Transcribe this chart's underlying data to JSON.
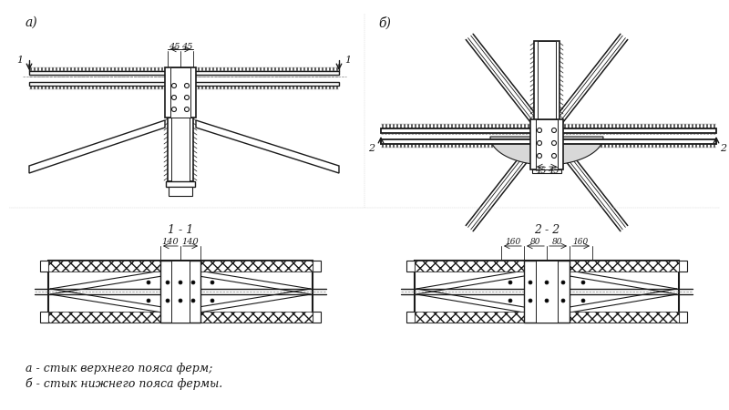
{
  "bg_color": "#ffffff",
  "line_color": "#1a1a1a",
  "label_a": "а)",
  "label_b": "б)",
  "label_1_1": "1 - 1",
  "label_2_2": "2 - 2",
  "footnote_a": "а - стык верхнего пояса ферм;",
  "footnote_b": "б - стык нижнего пояса фермы.",
  "figsize": [
    8.0,
    4.5
  ],
  "dpi": 100
}
